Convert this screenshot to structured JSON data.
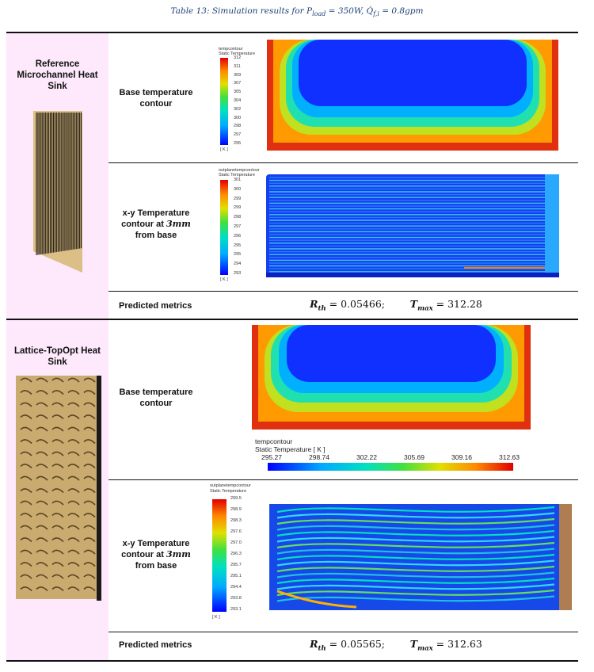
{
  "caption": {
    "prefix": "Table 13: Simulation results for ",
    "p_symbol": "P",
    "p_sub": "load",
    "p_value": " = 350W, ",
    "q_symbol": "Q̇",
    "q_sub": "f,i",
    "q_value": " = 0.8gpm"
  },
  "sections": [
    {
      "title": "Reference Microchannel Heat Sink",
      "rows": {
        "base_label": "Base temperature contour",
        "xy_label_line1": "x-y Temperature",
        "xy_label_line2a": "contour at ",
        "xy_label_math": "3mm",
        "xy_label_line3": "from base",
        "metrics_label": "Predicted metrics"
      },
      "base_colorbar": {
        "name": "tempcontour",
        "title": "Static Temperature",
        "unit": "[ K ]",
        "ticks": [
          "312",
          "311",
          "309",
          "307",
          "305",
          "304",
          "302",
          "300",
          "298",
          "297",
          "295"
        ]
      },
      "xy_colorbar": {
        "name": "outplanetempcontour",
        "title": "Static Temperature",
        "unit": "[ K ]",
        "ticks": [
          "301",
          "300",
          "299",
          "299",
          "298",
          "297",
          "296",
          "295",
          "295",
          "294",
          "293"
        ]
      },
      "metrics": {
        "rth_symbol": "R",
        "rth_sub": "th",
        "rth_value": " = 0.05466;",
        "tmax_symbol": "T",
        "tmax_sub": "max",
        "tmax_value": " = 312.28"
      }
    },
    {
      "title": "Lattice-TopOpt Heat Sink",
      "rows": {
        "base_label": "Base temperature contour",
        "xy_label_line1": "x-y Temperature",
        "xy_label_line2a": "contour at ",
        "xy_label_math": "3mm",
        "xy_label_line3": "from base",
        "metrics_label": "Predicted metrics"
      },
      "base_colorbar": {
        "name": "tempcontour",
        "title": "Static Temperature [ K ]",
        "ticks": [
          "295.27",
          "298.74",
          "302.22",
          "305.69",
          "309.16",
          "312.63"
        ]
      },
      "xy_colorbar": {
        "name": "outplanetempcontour",
        "title": "Static Temperature",
        "unit": "[ K ]",
        "ticks": [
          "299.5",
          "298.9",
          "298.3",
          "297.6",
          "297.0",
          "296.3",
          "295.7",
          "295.1",
          "294.4",
          "293.8",
          "293.1"
        ]
      },
      "metrics": {
        "rth_symbol": "R",
        "rth_sub": "th",
        "rth_value": " = 0.05565;",
        "tmax_symbol": "T",
        "tmax_sub": "max",
        "tmax_value": " = 312.63"
      }
    }
  ],
  "colors": {
    "section_bg": "#fde9fb",
    "caption": "#1f3f77",
    "heatsink": "#dcbf86"
  }
}
